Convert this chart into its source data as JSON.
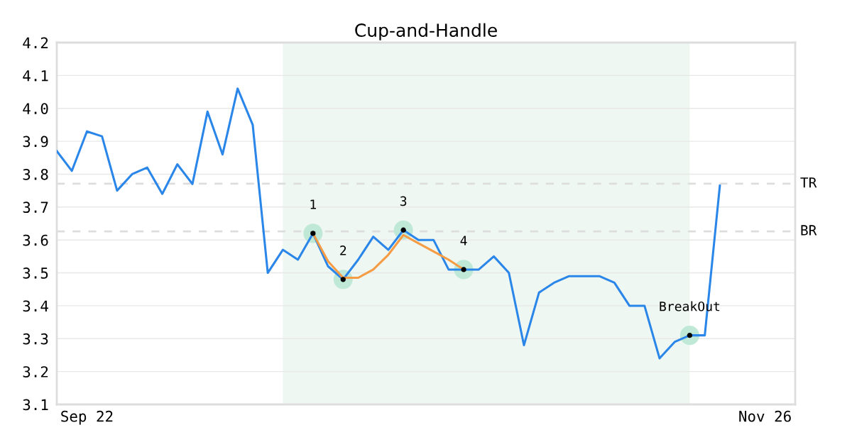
{
  "chart_data": {
    "type": "line",
    "title": "Cup-and-Handle",
    "categories": [
      null,
      null,
      "Sep 22",
      null,
      null,
      null,
      null,
      null,
      null,
      null,
      null,
      null,
      null,
      null,
      null,
      null,
      null,
      null,
      null,
      null,
      null,
      null,
      null,
      null,
      null,
      null,
      null,
      null,
      null,
      null,
      null,
      null,
      null,
      null,
      null,
      null,
      null,
      null,
      null,
      null,
      null,
      null,
      null,
      null,
      null,
      null,
      null,
      "Nov 26",
      null,
      null
    ],
    "series": [
      {
        "color": "#2a86e8",
        "values": [
          3.87,
          3.81,
          3.93,
          3.915,
          3.75,
          3.8,
          3.82,
          3.74,
          3.83,
          3.77,
          3.99,
          3.86,
          4.06,
          3.95,
          3.5,
          3.57,
          3.54,
          3.62,
          3.52,
          3.48,
          3.54,
          3.61,
          3.57,
          3.63,
          3.6,
          3.6,
          3.51,
          3.51,
          3.51,
          3.55,
          3.5,
          3.28,
          3.44,
          3.47,
          3.49,
          3.49,
          3.49,
          3.47,
          3.4,
          3.4,
          3.24,
          3.29,
          3.31,
          3.31,
          3.765,
          null,
          null,
          null,
          null,
          null
        ]
      },
      {
        "color": "#f59c45",
        "values": [
          null,
          null,
          null,
          null,
          null,
          null,
          null,
          null,
          null,
          null,
          null,
          null,
          null,
          null,
          null,
          null,
          null,
          3.62,
          3.535,
          3.485,
          3.485,
          3.51,
          3.555,
          3.615,
          3.59,
          3.565,
          3.54,
          3.51,
          null,
          null,
          null,
          null,
          null,
          null,
          null,
          null,
          null,
          null,
          null,
          null,
          null,
          null,
          null,
          null,
          null,
          null,
          null,
          null,
          null,
          null
        ]
      },
      {
        "type": "scatter",
        "color": "#bfe9d6",
        "values": [
          null,
          null,
          null,
          null,
          null,
          null,
          null,
          null,
          null,
          null,
          null,
          null,
          null,
          null,
          null,
          null,
          null,
          3.62,
          null,
          3.48,
          null,
          null,
          null,
          3.63,
          null,
          null,
          null,
          3.51,
          null,
          null,
          null,
          null,
          null,
          null,
          null,
          null,
          null,
          null,
          null,
          null,
          null,
          null,
          3.31,
          null,
          null,
          null,
          null,
          null,
          null,
          null
        ]
      }
    ],
    "annotations": [
      {
        "text": "1",
        "y": 3.62
      },
      {
        "text": "2",
        "y": 3.48
      },
      {
        "text": "3",
        "y": 3.63
      },
      {
        "text": "4",
        "y": 3.51
      },
      {
        "text": "BreakOut",
        "y": 3.31
      }
    ],
    "ref_lines": [
      {
        "axis": "y",
        "value": 3.771,
        "label": "TR",
        "color": "#dddddd",
        "line_style": "dashed"
      },
      {
        "axis": "y",
        "value": 3.626,
        "label": "BR",
        "color": "#dddddd",
        "line_style": "dashed"
      }
    ],
    "ylim": [
      3.1,
      4.2
    ],
    "yticks": [
      3.1,
      3.2,
      3.3,
      3.4,
      3.5,
      3.6,
      3.7,
      3.8,
      3.9,
      {
        "value": 4.0,
        "label": "4.0"
      },
      4.1,
      4.2
    ],
    "grid": "y"
  }
}
